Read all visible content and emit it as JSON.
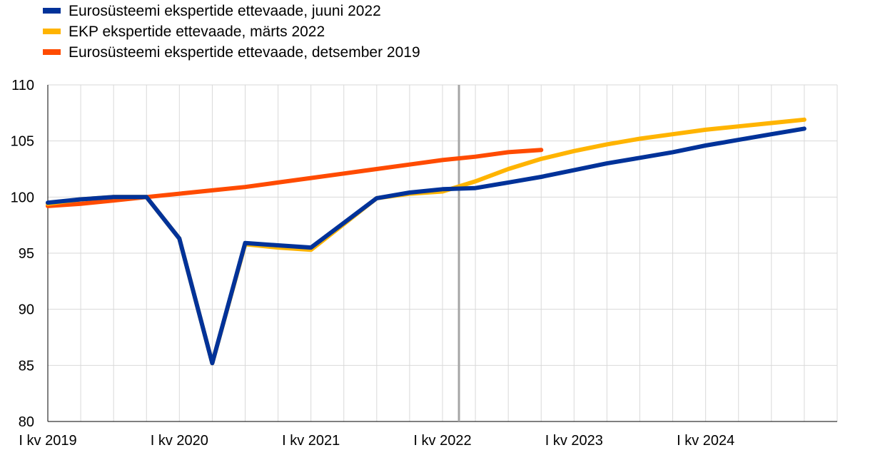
{
  "chart_data": {
    "type": "line",
    "title": "",
    "xlabel": "",
    "ylabel": "",
    "ylim": [
      80,
      110
    ],
    "y_ticks": [
      80,
      85,
      90,
      95,
      100,
      105,
      110
    ],
    "x_categories": [
      "2019Q1",
      "2019Q2",
      "2019Q3",
      "2019Q4",
      "2020Q1",
      "2020Q2",
      "2020Q3",
      "2020Q4",
      "2021Q1",
      "2021Q2",
      "2021Q3",
      "2021Q4",
      "2022Q1",
      "2022Q2",
      "2022Q3",
      "2022Q4",
      "2023Q1",
      "2023Q2",
      "2023Q3",
      "2023Q4",
      "2024Q1",
      "2024Q2",
      "2024Q3",
      "2024Q4"
    ],
    "x_tick_labels": [
      {
        "index": 0,
        "label": "I kv 2019"
      },
      {
        "index": 4,
        "label": "I kv 2020"
      },
      {
        "index": 8,
        "label": "I kv 2021"
      },
      {
        "index": 12,
        "label": "I kv 2022"
      },
      {
        "index": 16,
        "label": "I kv 2023"
      },
      {
        "index": 20,
        "label": "I kv 2024"
      }
    ],
    "vertical_marker_index": 12.5,
    "grid": true,
    "legend_position": "top-left",
    "series": [
      {
        "name": "Eurosüsteemi ekspertide ettevaade, juuni 2022",
        "color": "#003299",
        "values": [
          99.5,
          99.8,
          100.0,
          100.0,
          96.3,
          85.2,
          95.9,
          95.7,
          95.5,
          97.7,
          99.9,
          100.4,
          100.7,
          100.8,
          101.3,
          101.8,
          102.4,
          103.0,
          103.5,
          104.0,
          104.6,
          105.1,
          105.6,
          106.1
        ]
      },
      {
        "name": "EKP ekspertide ettevaade, märts 2022",
        "color": "#FFB400",
        "values": [
          99.4,
          99.8,
          100.0,
          100.0,
          96.3,
          85.2,
          95.8,
          95.5,
          95.3,
          97.6,
          99.9,
          100.3,
          100.5,
          101.4,
          102.5,
          103.4,
          104.1,
          104.7,
          105.2,
          105.6,
          106.0,
          106.3,
          106.6,
          106.9
        ]
      },
      {
        "name": "Eurosüsteemi ekspertide ettevaade, detsember 2019",
        "color": "#FF4B00",
        "values": [
          99.2,
          99.4,
          99.7,
          100.0,
          100.3,
          100.6,
          100.9,
          101.3,
          101.7,
          102.1,
          102.5,
          102.9,
          103.3,
          103.6,
          104.0,
          104.2
        ]
      }
    ]
  }
}
